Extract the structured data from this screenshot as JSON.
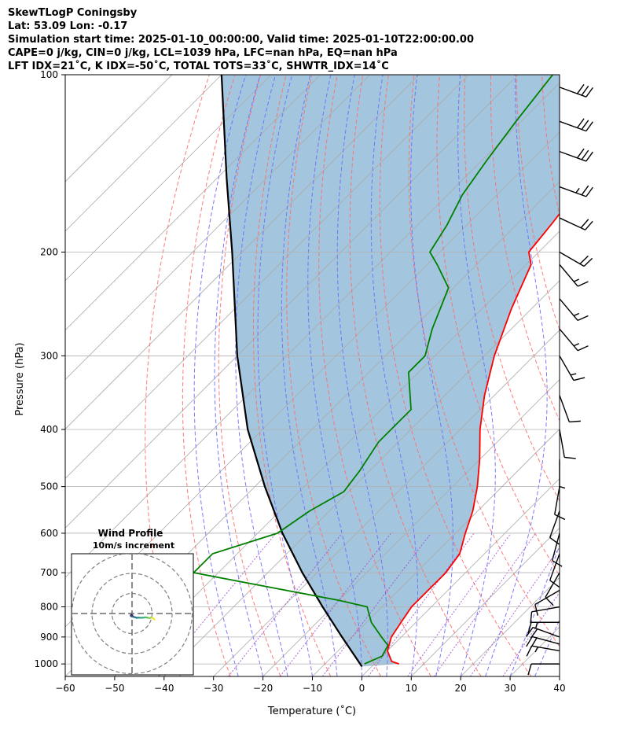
{
  "header": {
    "title": "SkewTLogP Coningsby",
    "location": "Lat: 53.09   Lon: -0.17",
    "times": "Simulation start time: 2025-01-10_00:00:00, Valid time: 2025-01-10T22:00:00.00",
    "indices1": "CAPE=0 j/kg, CIN=0 j/kg, LCL=1039 hPa, LFC=nan hPa, EQ=nan hPa",
    "indices2": "LFT IDX=21˚C, K IDX=-50˚C, TOTAL TOTS=33˚C, SHWTR_IDX=14˚C"
  },
  "chart_data": {
    "type": "line",
    "xlabel": "Temperature (˚C)",
    "ylabel": "Pressure (hPa)",
    "xlim": [
      -60,
      40
    ],
    "ylim": [
      1050,
      100
    ],
    "y_scale": "log",
    "xticks": [
      -60,
      -50,
      -40,
      -30,
      -20,
      -10,
      0,
      10,
      20,
      30,
      40
    ],
    "xtick_labels": [
      "−60",
      "−50",
      "−40",
      "−30",
      "−20",
      "−10",
      "0",
      "10",
      "20",
      "30",
      "40"
    ],
    "yticks": [
      1000,
      900,
      800,
      700,
      600,
      500,
      400,
      300,
      200,
      100
    ],
    "grid": true,
    "colors": {
      "temperature": "#ff0000",
      "dewpoint": "#008000",
      "parcel": "#000000",
      "cape_fill": "#a3c6de",
      "dry_adiabats": "#ff6b6b",
      "moist_adiabats": "#6b6bff",
      "mixing_ratio": "#9b40d0",
      "isotherms": "#aaaaaa"
    },
    "series": [
      {
        "values": [
          [
            1000,
            5.0
          ],
          [
            990,
            3.0
          ],
          [
            950,
            0.0
          ],
          [
            900,
            -2.0
          ],
          [
            850,
            -3.0
          ],
          [
            800,
            -4.0
          ],
          [
            750,
            -4.0
          ],
          [
            700,
            -4.0
          ],
          [
            650,
            -5.0
          ],
          [
            600,
            -8.0
          ],
          [
            550,
            -11.0
          ],
          [
            500,
            -15.0
          ],
          [
            450,
            -20.0
          ],
          [
            400,
            -26.0
          ],
          [
            350,
            -32.0
          ],
          [
            300,
            -38.0
          ],
          [
            250,
            -44.0
          ],
          [
            210,
            -49.0
          ],
          [
            200,
            -52.0
          ],
          [
            180,
            -53.0
          ],
          [
            150,
            -55.0
          ],
          [
            120,
            -56.0
          ],
          [
            100,
            -58.0
          ]
        ]
      },
      {
        "values": [
          [
            1000,
            -2.0
          ],
          [
            970,
            0.0
          ],
          [
            930,
            -1.0
          ],
          [
            900,
            -4.0
          ],
          [
            850,
            -9.0
          ],
          [
            800,
            -13.0
          ],
          [
            780,
            -20.0
          ],
          [
            740,
            -37.0
          ],
          [
            700,
            -55.0
          ],
          [
            650,
            -55.0
          ],
          [
            600,
            -46.0
          ],
          [
            550,
            -44.0
          ],
          [
            510,
            -41.0
          ],
          [
            470,
            -42.0
          ],
          [
            420,
            -44.0
          ],
          [
            370,
            -44.0
          ],
          [
            320,
            -52.0
          ],
          [
            300,
            -52.0
          ],
          [
            270,
            -56.0
          ],
          [
            230,
            -61.0
          ],
          [
            210,
            -68.0
          ],
          [
            200,
            -72.0
          ],
          [
            180,
            -74.0
          ],
          [
            160,
            -77.0
          ],
          [
            140,
            -79.0
          ],
          [
            120,
            -81.0
          ],
          [
            100,
            -83.0
          ]
        ]
      },
      {
        "values": [
          [
            1010,
            -2.0
          ],
          [
            900,
            -12.0
          ],
          [
            800,
            -22.0
          ],
          [
            700,
            -33.0
          ],
          [
            600,
            -45.0
          ],
          [
            500,
            -58.0
          ],
          [
            400,
            -73.0
          ],
          [
            300,
            -90.0
          ],
          [
            200,
            -112.0
          ],
          [
            150,
            -128.0
          ],
          [
            100,
            -150.0
          ]
        ]
      }
    ],
    "wind_barbs": [
      {
        "p": 1000,
        "speed": 10,
        "dir": 270
      },
      {
        "p": 950,
        "speed": 15,
        "dir": 280
      },
      {
        "p": 925,
        "speed": 20,
        "dir": 285
      },
      {
        "p": 900,
        "speed": 20,
        "dir": 290
      },
      {
        "p": 850,
        "speed": 15,
        "dir": 270
      },
      {
        "p": 800,
        "speed": 10,
        "dir": 260
      },
      {
        "p": 750,
        "speed": 10,
        "dir": 240
      },
      {
        "p": 700,
        "speed": 10,
        "dir": 210
      },
      {
        "p": 650,
        "speed": 10,
        "dir": 200
      },
      {
        "p": 600,
        "speed": 10,
        "dir": 195
      },
      {
        "p": 550,
        "speed": 10,
        "dir": 200
      },
      {
        "p": 500,
        "speed": 10,
        "dir": 190
      },
      {
        "p": 450,
        "speed": 5,
        "dir": 180
      },
      {
        "p": 400,
        "speed": 10,
        "dir": 170
      },
      {
        "p": 350,
        "speed": 10,
        "dir": 160
      },
      {
        "p": 300,
        "speed": 15,
        "dir": 150
      },
      {
        "p": 270,
        "speed": 15,
        "dir": 140
      },
      {
        "p": 240,
        "speed": 15,
        "dir": 140
      },
      {
        "p": 210,
        "speed": 15,
        "dir": 140
      },
      {
        "p": 200,
        "speed": 20,
        "dir": 120
      },
      {
        "p": 175,
        "speed": 20,
        "dir": 115
      },
      {
        "p": 155,
        "speed": 25,
        "dir": 110
      },
      {
        "p": 135,
        "speed": 30,
        "dir": 110
      },
      {
        "p": 120,
        "speed": 30,
        "dir": 110
      },
      {
        "p": 105,
        "speed": 30,
        "dir": 110
      }
    ]
  },
  "inset": {
    "title": "Wind Profile",
    "subtitle": "10m/s increment",
    "hodograph": [
      [
        -0.3,
        0.6
      ],
      [
        -0.6,
        0.9
      ],
      [
        -0.2,
        1.1
      ],
      [
        0.2,
        0.9
      ],
      [
        -0.5,
        1.3
      ],
      [
        0.1,
        1.5
      ],
      [
        0.5,
        1.6
      ],
      [
        1.3,
        1.8
      ],
      [
        2.0,
        2.0
      ],
      [
        2.4,
        2.2
      ],
      [
        3.0,
        2.0
      ],
      [
        4.0,
        2.1
      ],
      [
        5.5,
        2.1
      ],
      [
        6.5,
        1.9
      ],
      [
        7.5,
        2.0
      ],
      [
        8.2,
        2.2
      ],
      [
        9.0,
        2.3
      ],
      [
        9.6,
        1.9
      ],
      [
        10.2,
        2.2
      ],
      [
        10.8,
        2.5
      ],
      [
        11.2,
        3.0
      ]
    ]
  }
}
